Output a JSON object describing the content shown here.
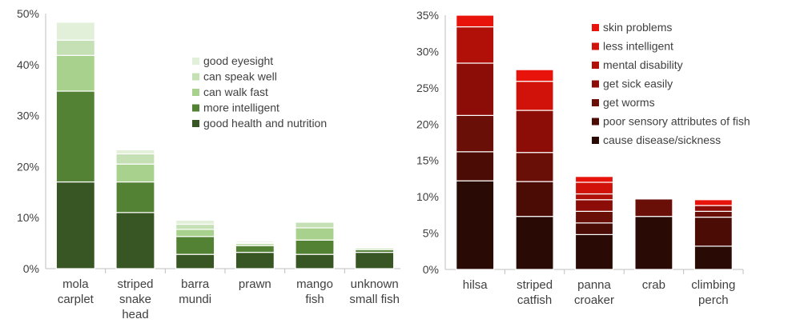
{
  "chart_data": [
    {
      "type": "bar",
      "stacked": true,
      "categories": [
        [
          "mola",
          "carplet"
        ],
        [
          "striped",
          "snake",
          "head"
        ],
        [
          "barra",
          "mundi"
        ],
        [
          "prawn"
        ],
        [
          "mango",
          "fish"
        ],
        [
          "unknown",
          "small fish"
        ]
      ],
      "y_ticks": [
        "0%",
        "10%",
        "20%",
        "30%",
        "40%",
        "50%"
      ],
      "ylim": [
        0,
        50
      ],
      "legend_position": "center-right",
      "series": [
        {
          "name": "good health and nutrition",
          "color": "#375623",
          "values": [
            17,
            11,
            2.8,
            3.2,
            2.8,
            3.2
          ]
        },
        {
          "name": "more intelligent",
          "color": "#548235",
          "values": [
            17.8,
            6,
            3.5,
            1.3,
            2.8,
            0.5
          ]
        },
        {
          "name": "can walk fast",
          "color": "#a9d18e",
          "values": [
            7,
            3.5,
            1.4,
            0.4,
            2.4,
            0.3
          ]
        },
        {
          "name": "can speak well",
          "color": "#c5e0b4",
          "values": [
            3,
            2,
            1,
            0.2,
            1.1,
            0.2
          ]
        },
        {
          "name": "good eyesight",
          "color": "#e2f0d9",
          "values": [
            3.5,
            0.8,
            0.8,
            0.3,
            0.1,
            0.2
          ]
        }
      ]
    },
    {
      "type": "bar",
      "stacked": true,
      "categories": [
        [
          "hilsa"
        ],
        [
          "striped",
          "catfish"
        ],
        [
          "panna",
          "croaker"
        ],
        [
          "crab"
        ],
        [
          "climbing",
          "perch"
        ]
      ],
      "y_ticks": [
        "0%",
        "5%",
        "10%",
        "15%",
        "20%",
        "25%",
        "30%",
        "35%"
      ],
      "ylim": [
        0,
        35
      ],
      "legend_position": "top-right",
      "series": [
        {
          "name": "cause disease/sickness",
          "color": "#2a0a04",
          "values": [
            12.2,
            7.3,
            4.8,
            7.3,
            3.2
          ]
        },
        {
          "name": "poor sensory attributes of fish",
          "color": "#4b0c06",
          "values": [
            4,
            4.8,
            1.6,
            0,
            4
          ]
        },
        {
          "name": "get worms",
          "color": "#6a0e08",
          "values": [
            5,
            4,
            1.6,
            2.4,
            0.8
          ]
        },
        {
          "name": "get sick easily",
          "color": "#8c0d08",
          "values": [
            7.2,
            5.8,
            1.6,
            0,
            0.8
          ]
        },
        {
          "name": "mental disability",
          "color": "#b01008",
          "values": [
            5,
            0,
            0.8,
            0,
            0
          ]
        },
        {
          "name": "less intelligent",
          "color": "#d0120a",
          "values": [
            0,
            4,
            1.6,
            0,
            0
          ]
        },
        {
          "name": "skin problems",
          "color": "#e8140c",
          "values": [
            1.6,
            1.6,
            0.8,
            0,
            0.8
          ]
        }
      ]
    }
  ]
}
